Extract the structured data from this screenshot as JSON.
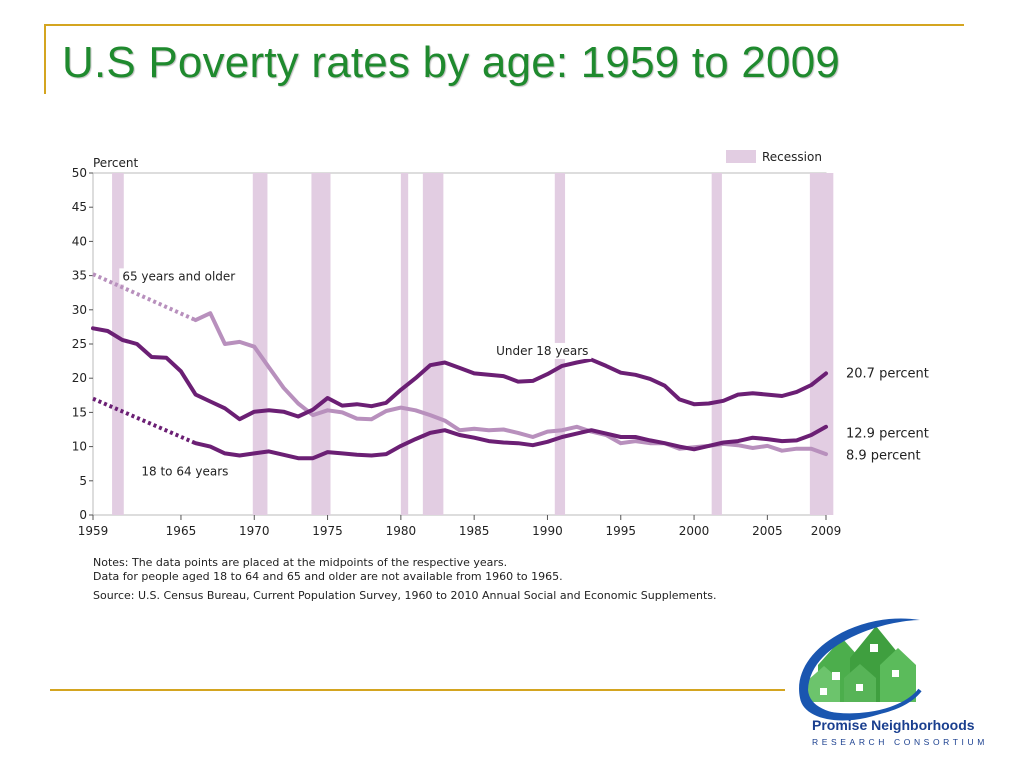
{
  "slide": {
    "title": "U.S Poverty rates by age: 1959 to 2009",
    "notes": [
      "Notes:  The data points are placed at the midpoints of the respective years.",
      "Data for people aged 18 to 64 and 65 and older are not available from 1960 to 1965."
    ],
    "source": "Source:  U.S. Census Bureau, Current Population Survey, 1960 to 2010 Annual Social and Economic Supplements."
  },
  "logo": {
    "name": "Promise Neighborhoods",
    "subtitle": "RESEARCH CONSORTIUM",
    "colors": {
      "house": "#4cae4c",
      "swoosh": "#1a56b0",
      "text": "#1a3f8f"
    }
  },
  "colors": {
    "title": "#1f8a2e",
    "accent_rule": "#d4a520"
  },
  "chart_data": {
    "type": "line",
    "title": "",
    "ylabel": "Percent",
    "xlabel": "",
    "xlim": [
      1959,
      2009
    ],
    "ylim": [
      0,
      50
    ],
    "yticks": [
      0,
      5,
      10,
      15,
      20,
      25,
      30,
      35,
      40,
      45,
      50
    ],
    "xticks": [
      1959,
      1965,
      1970,
      1975,
      1980,
      1985,
      1990,
      1995,
      2000,
      2005,
      2009
    ],
    "legend": {
      "label": "Recession",
      "position": "top-right",
      "color": "#e2cde2"
    },
    "recessions": [
      [
        1960.3,
        1961.1
      ],
      [
        1969.9,
        1970.9
      ],
      [
        1973.9,
        1975.2
      ],
      [
        1980.0,
        1980.5
      ],
      [
        1981.5,
        1982.9
      ],
      [
        1990.5,
        1991.2
      ],
      [
        2001.2,
        2001.9
      ],
      [
        2007.9,
        2009.5
      ]
    ],
    "series": [
      {
        "name": "Under 18 years",
        "color": "#6b1f74",
        "x": [
          1959,
          1960,
          1961,
          1962,
          1963,
          1964,
          1965,
          1966,
          1967,
          1968,
          1969,
          1970,
          1971,
          1972,
          1973,
          1974,
          1975,
          1976,
          1977,
          1978,
          1979,
          1980,
          1981,
          1982,
          1983,
          1984,
          1985,
          1986,
          1987,
          1988,
          1989,
          1990,
          1991,
          1992,
          1993,
          1994,
          1995,
          1996,
          1997,
          1998,
          1999,
          2000,
          2001,
          2002,
          2003,
          2004,
          2005,
          2006,
          2007,
          2008,
          2009
        ],
        "y": [
          27.3,
          26.9,
          25.6,
          25.0,
          23.1,
          23.0,
          21.0,
          17.6,
          16.6,
          15.6,
          14.0,
          15.1,
          15.3,
          15.1,
          14.4,
          15.4,
          17.1,
          16.0,
          16.2,
          15.9,
          16.4,
          18.3,
          20.0,
          21.9,
          22.3,
          21.5,
          20.7,
          20.5,
          20.3,
          19.5,
          19.6,
          20.6,
          21.8,
          22.3,
          22.7,
          21.8,
          20.8,
          20.5,
          19.9,
          18.9,
          16.9,
          16.2,
          16.3,
          16.7,
          17.6,
          17.8,
          17.6,
          17.4,
          18.0,
          19.0,
          20.7
        ],
        "end_label": "20.7 percent"
      },
      {
        "name": "65 years and older",
        "color": "#b890bd",
        "x": [
          1966,
          1967,
          1968,
          1969,
          1970,
          1971,
          1972,
          1973,
          1974,
          1975,
          1976,
          1977,
          1978,
          1979,
          1980,
          1981,
          1982,
          1983,
          1984,
          1985,
          1986,
          1987,
          1988,
          1989,
          1990,
          1991,
          1992,
          1993,
          1994,
          1995,
          1996,
          1997,
          1998,
          1999,
          2000,
          2001,
          2002,
          2003,
          2004,
          2005,
          2006,
          2007,
          2008,
          2009
        ],
        "y": [
          28.5,
          29.5,
          25.0,
          25.3,
          24.6,
          21.6,
          18.6,
          16.3,
          14.6,
          15.3,
          15.0,
          14.1,
          14.0,
          15.2,
          15.7,
          15.3,
          14.6,
          13.8,
          12.4,
          12.6,
          12.4,
          12.5,
          12.0,
          11.4,
          12.2,
          12.4,
          12.9,
          12.2,
          11.7,
          10.5,
          10.8,
          10.5,
          10.5,
          9.7,
          9.9,
          10.1,
          10.4,
          10.2,
          9.8,
          10.1,
          9.4,
          9.7,
          9.7,
          8.9
        ],
        "dotted": {
          "x": [
            1959,
            1966
          ],
          "y": [
            35.2,
            28.5
          ]
        },
        "end_label": "8.9 percent"
      },
      {
        "name": "18 to 64 years",
        "color": "#6b1f74",
        "x": [
          1966,
          1967,
          1968,
          1969,
          1970,
          1971,
          1972,
          1973,
          1974,
          1975,
          1976,
          1977,
          1978,
          1979,
          1980,
          1981,
          1982,
          1983,
          1984,
          1985,
          1986,
          1987,
          1988,
          1989,
          1990,
          1991,
          1992,
          1993,
          1994,
          1995,
          1996,
          1997,
          1998,
          1999,
          2000,
          2001,
          2002,
          2003,
          2004,
          2005,
          2006,
          2007,
          2008,
          2009
        ],
        "y": [
          10.5,
          10.0,
          9.0,
          8.7,
          9.0,
          9.3,
          8.8,
          8.3,
          8.3,
          9.2,
          9.0,
          8.8,
          8.7,
          8.9,
          10.1,
          11.1,
          12.0,
          12.4,
          11.7,
          11.3,
          10.8,
          10.6,
          10.5,
          10.2,
          10.7,
          11.4,
          11.9,
          12.4,
          11.9,
          11.4,
          11.4,
          10.9,
          10.5,
          10.0,
          9.6,
          10.1,
          10.6,
          10.8,
          11.3,
          11.1,
          10.8,
          10.9,
          11.7,
          12.9
        ],
        "dotted": {
          "x": [
            1959,
            1966
          ],
          "y": [
            17.0,
            10.5
          ]
        },
        "end_label": "12.9 percent"
      }
    ]
  }
}
